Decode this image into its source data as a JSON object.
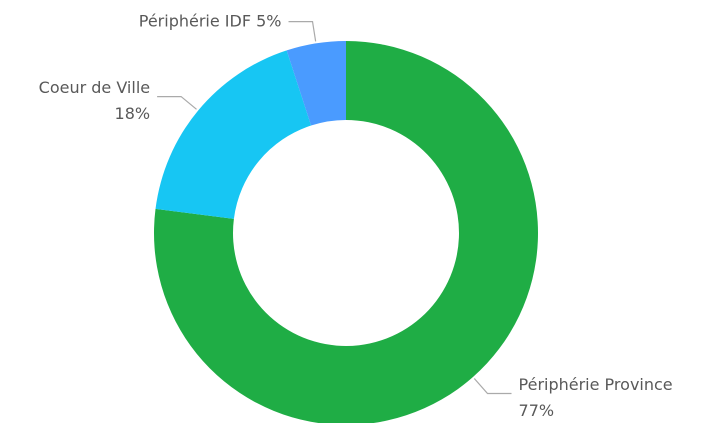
{
  "chart_data": {
    "type": "donut",
    "categories": [
      "Périphérie Province",
      "Coeur de Ville",
      "Périphérie IDF"
    ],
    "values": [
      77,
      18,
      5
    ],
    "value_labels": [
      "77%",
      "18%",
      "5%"
    ],
    "colors": [
      "#1fad45",
      "#17c6f3",
      "#4a9bff"
    ]
  }
}
